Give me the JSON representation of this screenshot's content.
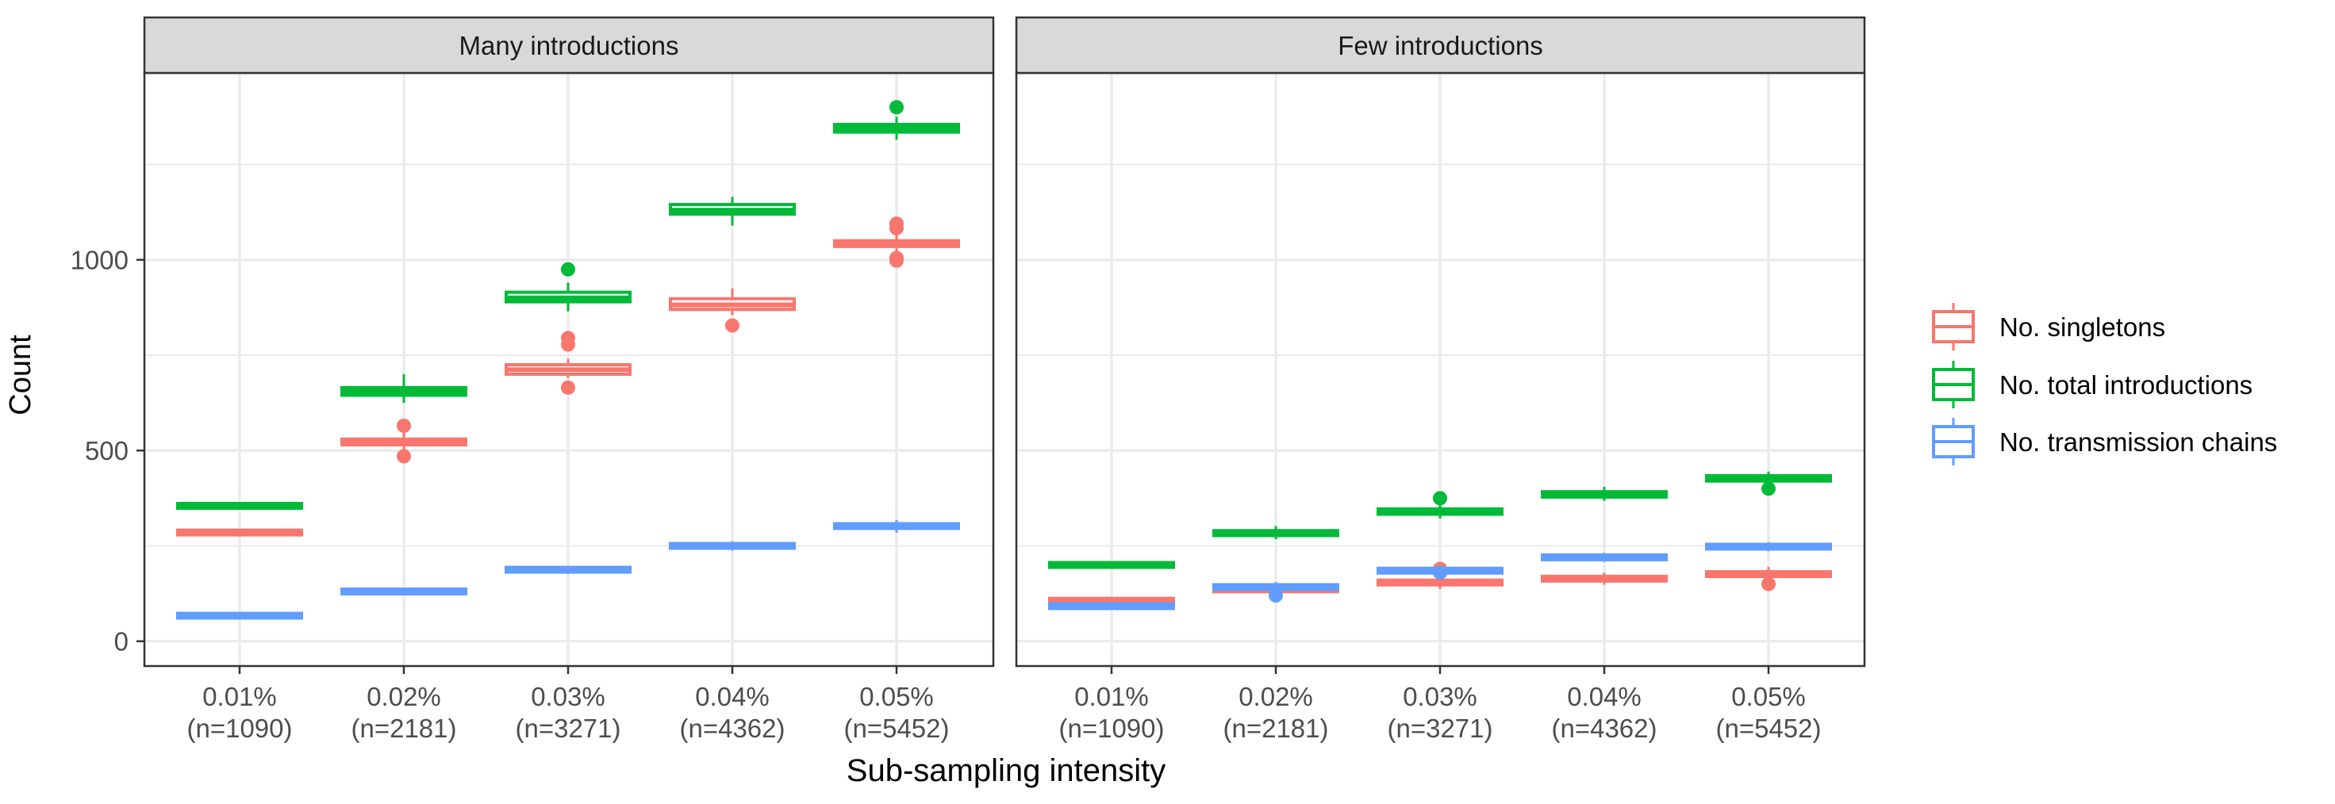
{
  "chart_data": {
    "type": "boxplot",
    "ylabel": "Count",
    "xlabel": "Sub-sampling intensity",
    "ylim": [
      -65,
      1490
    ],
    "y_ticks": [
      0,
      500,
      1000
    ],
    "grid": true,
    "legend_placement": "right",
    "categories": [
      [
        "0.01%",
        "(n=1090)"
      ],
      [
        "0.02%",
        "(n=2181)"
      ],
      [
        "0.03%",
        "(n=3271)"
      ],
      [
        "0.04%",
        "(n=4362)"
      ],
      [
        "0.05%",
        "(n=5452)"
      ]
    ],
    "series": [
      {
        "name": "No. singletons",
        "color": "#F8766D"
      },
      {
        "name": "No. total introductions",
        "color": "#00BA38"
      },
      {
        "name": "No. transmission chains",
        "color": "#619CFF"
      }
    ],
    "panels": [
      {
        "title": "Many introductions",
        "boxes": {
          "No. singletons": [
            {
              "q1": 282,
              "median": 285,
              "q3": 288,
              "lo": 279,
              "hi": 291,
              "outliers": []
            },
            {
              "q1": 515,
              "median": 522,
              "q3": 530,
              "lo": 500,
              "hi": 550,
              "outliers": [
                565,
                485
              ]
            },
            {
              "q1": 700,
              "median": 712,
              "q3": 725,
              "lo": 690,
              "hi": 740,
              "outliers": [
                795,
                778,
                665
              ]
            },
            {
              "q1": 870,
              "median": 882,
              "q3": 898,
              "lo": 855,
              "hi": 925,
              "outliers": [
                828
              ]
            },
            {
              "q1": 1035,
              "median": 1042,
              "q3": 1050,
              "lo": 1020,
              "hi": 1065,
              "outliers": [
                1095,
                1083,
                1005,
                998
              ]
            }
          ],
          "No. total introductions": [
            {
              "q1": 352,
              "median": 355,
              "q3": 358,
              "lo": 349,
              "hi": 361,
              "outliers": []
            },
            {
              "q1": 645,
              "median": 655,
              "q3": 665,
              "lo": 625,
              "hi": 700,
              "outliers": []
            },
            {
              "q1": 890,
              "median": 900,
              "q3": 915,
              "lo": 865,
              "hi": 940,
              "outliers": [
                975
              ]
            },
            {
              "q1": 1120,
              "median": 1130,
              "q3": 1145,
              "lo": 1090,
              "hi": 1165,
              "outliers": []
            },
            {
              "q1": 1335,
              "median": 1345,
              "q3": 1355,
              "lo": 1315,
              "hi": 1375,
              "outliers": [
                1400
              ]
            }
          ],
          "No. transmission chains": [
            {
              "q1": 64,
              "median": 67,
              "q3": 70,
              "lo": 61,
              "hi": 73,
              "outliers": []
            },
            {
              "q1": 127,
              "median": 130,
              "q3": 134,
              "lo": 122,
              "hi": 139,
              "outliers": []
            },
            {
              "q1": 183,
              "median": 187,
              "q3": 192,
              "lo": 176,
              "hi": 198,
              "outliers": []
            },
            {
              "q1": 245,
              "median": 250,
              "q3": 255,
              "lo": 238,
              "hi": 262,
              "outliers": []
            },
            {
              "q1": 296,
              "median": 302,
              "q3": 308,
              "lo": 285,
              "hi": 318,
              "outliers": []
            }
          ]
        }
      },
      {
        "title": "Few introductions",
        "boxes": {
          "No. singletons": [
            {
              "q1": 103,
              "median": 106,
              "q3": 109,
              "lo": 100,
              "hi": 112,
              "outliers": []
            },
            {
              "q1": 132,
              "median": 136,
              "q3": 140,
              "lo": 125,
              "hi": 148,
              "outliers": []
            },
            {
              "q1": 148,
              "median": 154,
              "q3": 160,
              "lo": 137,
              "hi": 172,
              "outliers": [
                190
              ]
            },
            {
              "q1": 158,
              "median": 164,
              "q3": 170,
              "lo": 148,
              "hi": 180,
              "outliers": []
            },
            {
              "q1": 170,
              "median": 176,
              "q3": 182,
              "lo": 160,
              "hi": 195,
              "outliers": [
                150
              ]
            }
          ],
          "No. total introductions": [
            {
              "q1": 197,
              "median": 200,
              "q3": 203,
              "lo": 194,
              "hi": 206,
              "outliers": []
            },
            {
              "q1": 277,
              "median": 283,
              "q3": 290,
              "lo": 268,
              "hi": 302,
              "outliers": []
            },
            {
              "q1": 333,
              "median": 340,
              "q3": 347,
              "lo": 322,
              "hi": 358,
              "outliers": [
                375
              ]
            },
            {
              "q1": 378,
              "median": 385,
              "q3": 392,
              "lo": 368,
              "hi": 405,
              "outliers": []
            },
            {
              "q1": 420,
              "median": 427,
              "q3": 434,
              "lo": 408,
              "hi": 445,
              "outliers": [
                400
              ]
            }
          ],
          "No. transmission chains": [
            {
              "q1": 89,
              "median": 92,
              "q3": 95,
              "lo": 86,
              "hi": 98,
              "outliers": []
            },
            {
              "q1": 137,
              "median": 142,
              "q3": 147,
              "lo": 130,
              "hi": 155,
              "outliers": [
                120
              ]
            },
            {
              "q1": 180,
              "median": 185,
              "q3": 190,
              "lo": 172,
              "hi": 198,
              "outliers": [
                180
              ]
            },
            {
              "q1": 215,
              "median": 220,
              "q3": 225,
              "lo": 208,
              "hi": 232,
              "outliers": []
            },
            {
              "q1": 243,
              "median": 248,
              "q3": 253,
              "lo": 236,
              "hi": 260,
              "outliers": []
            }
          ]
        }
      }
    ]
  }
}
